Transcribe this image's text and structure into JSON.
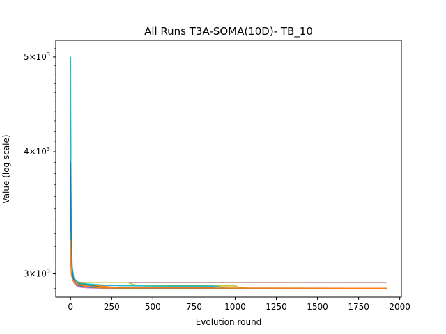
{
  "chart_data": {
    "type": "line",
    "title": "All Runs T3A-SOMA(10D)- TB_10",
    "xlabel": "Evolution round",
    "ylabel": "Value (log scale)",
    "yscale": "log",
    "xlim": [
      -90,
      2010
    ],
    "ylim": [
      2840,
      5200
    ],
    "xticks": [
      0,
      250,
      500,
      750,
      1000,
      1250,
      1500,
      1750,
      2000
    ],
    "xtick_labels": [
      "0",
      "250",
      "500",
      "750",
      "1000",
      "1250",
      "1500",
      "1750",
      "2000"
    ],
    "yticks": [
      3000,
      4000,
      5000
    ],
    "ytick_labels": [
      {
        "base": "3",
        "sup": "3"
      },
      {
        "base": "4",
        "sup": "3"
      },
      {
        "base": "5",
        "sup": "3"
      }
    ],
    "grid": false,
    "series": [
      {
        "color": "#1f77b4",
        "x": [
          0,
          2,
          5,
          10,
          20,
          40,
          60,
          100,
          150,
          200,
          250,
          300,
          400,
          500,
          870,
          880,
          890,
          900,
          910,
          930,
          1920
        ],
        "y": [
          4450,
          3500,
          3150,
          3020,
          2960,
          2930,
          2925,
          2922,
          2921,
          2920,
          2919,
          2918,
          2918,
          2917,
          2916,
          2900,
          2900,
          2900,
          2900,
          2900,
          2900
        ]
      },
      {
        "color": "#ff7f0e",
        "x": [
          0,
          3,
          6,
          12,
          25,
          40,
          60,
          100,
          150,
          200,
          250,
          300,
          350,
          400,
          450,
          500,
          1920
        ],
        "y": [
          3700,
          3200,
          3050,
          2980,
          2950,
          2940,
          2935,
          2928,
          2920,
          2913,
          2908,
          2905,
          2903,
          2901,
          2900,
          2900,
          2900
        ]
      },
      {
        "color": "#2ca02c",
        "x": [
          0,
          3,
          6,
          12,
          25,
          40,
          60,
          100,
          150,
          200,
          250,
          300,
          350,
          1920
        ],
        "y": [
          3500,
          3150,
          3020,
          2970,
          2945,
          2935,
          2930,
          2925,
          2915,
          2905,
          2902,
          2900,
          2900,
          2900
        ]
      },
      {
        "color": "#d62728",
        "x": [
          0,
          3,
          6,
          12,
          25,
          40,
          60,
          80,
          120,
          150,
          200,
          250,
          300,
          870,
          880,
          890,
          1920
        ],
        "y": [
          3800,
          3200,
          3050,
          2970,
          2935,
          2915,
          2908,
          2905,
          2904,
          2904,
          2903,
          2903,
          2902,
          2902,
          2900,
          2900,
          2900
        ]
      },
      {
        "color": "#9467bd",
        "x": [
          0,
          3,
          6,
          12,
          25,
          40,
          60,
          100,
          150,
          200,
          250,
          1920
        ],
        "y": [
          4300,
          3400,
          3100,
          3000,
          2950,
          2920,
          2910,
          2905,
          2903,
          2901,
          2900,
          2900
        ]
      },
      {
        "color": "#8c564b",
        "x": [
          0,
          3,
          6,
          12,
          25,
          40,
          60,
          100,
          200,
          300,
          1920
        ],
        "y": [
          3200,
          3050,
          2990,
          2965,
          2950,
          2945,
          2940,
          2938,
          2938,
          2938,
          2938
        ]
      },
      {
        "color": "#e377c2",
        "x": [
          0,
          3,
          6,
          12,
          25,
          40,
          60,
          100,
          150,
          200,
          250,
          300,
          1920
        ],
        "y": [
          3400,
          3100,
          3010,
          2960,
          2930,
          2915,
          2908,
          2903,
          2901,
          2900,
          2900,
          2900,
          2900
        ]
      },
      {
        "color": "#7f7f7f",
        "x": [
          0,
          3,
          6,
          12,
          25,
          40,
          60,
          100,
          150,
          200,
          300,
          1920
        ],
        "y": [
          3600,
          3150,
          3030,
          2975,
          2945,
          2930,
          2925,
          2920,
          2912,
          2905,
          2900,
          2900
        ]
      },
      {
        "color": "#bcbd22",
        "x": [
          0,
          3,
          6,
          12,
          25,
          40,
          60,
          100,
          200,
          300,
          350,
          370,
          380,
          400,
          500,
          600,
          700,
          800,
          900,
          1000,
          1010,
          1020,
          1040,
          1060,
          1080,
          1920
        ],
        "y": [
          3300,
          3050,
          2990,
          2960,
          2945,
          2940,
          2938,
          2938,
          2938,
          2938,
          2938,
          2930,
          2925,
          2922,
          2918,
          2916,
          2916,
          2916,
          2916,
          2916,
          2912,
          2908,
          2905,
          2902,
          2900,
          2900
        ]
      },
      {
        "color": "#17becf",
        "x": [
          0,
          2,
          5,
          10,
          20,
          40,
          60,
          100,
          150,
          200,
          250,
          300,
          400,
          500,
          600,
          700,
          800,
          890,
          900,
          920,
          940,
          960,
          1920
        ],
        "y": [
          5000,
          3900,
          3250,
          3050,
          2970,
          2945,
          2935,
          2930,
          2925,
          2922,
          2920,
          2918,
          2916,
          2915,
          2914,
          2914,
          2914,
          2914,
          2910,
          2905,
          2901,
          2900,
          2900
        ]
      },
      {
        "color": "#1f77b4",
        "x": [
          0,
          3,
          6,
          12,
          25,
          40,
          60,
          100,
          150,
          200,
          1920
        ],
        "y": [
          3900,
          3300,
          3080,
          2990,
          2945,
          2925,
          2915,
          2908,
          2904,
          2901,
          2900
        ]
      },
      {
        "color": "#ff7f0e",
        "x": [
          0,
          3,
          6,
          12,
          25,
          40,
          60,
          100,
          150,
          200,
          1920
        ],
        "y": [
          3250,
          3060,
          3000,
          2960,
          2940,
          2928,
          2920,
          2912,
          2906,
          2902,
          2900
        ]
      }
    ]
  }
}
